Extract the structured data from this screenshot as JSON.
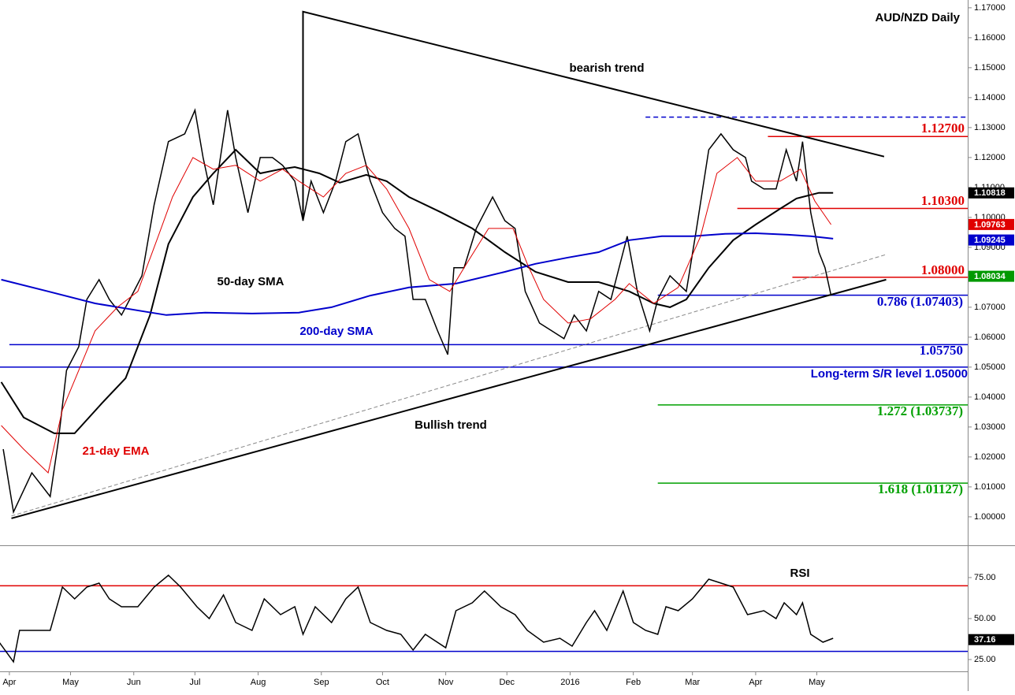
{
  "chart_data": [
    {
      "type": "line",
      "title": "AUD/NZD Daily",
      "xlim": [
        -4.6,
        470
      ],
      "ylim": [
        0.9905,
        1.1726
      ],
      "yticks": [
        {
          "value": 1.0,
          "label": "1.00000"
        },
        {
          "value": 1.01,
          "label": "1.01000"
        },
        {
          "value": 1.02,
          "label": "1.02000"
        },
        {
          "value": 1.03,
          "label": "1.03000"
        },
        {
          "value": 1.04,
          "label": "1.04000"
        },
        {
          "value": 1.05,
          "label": "1.05000"
        },
        {
          "value": 1.06,
          "label": "1.06000"
        },
        {
          "value": 1.07,
          "label": "1.07000"
        },
        {
          "value": 1.08,
          "label": "1.08000"
        },
        {
          "value": 1.09,
          "label": "1.09000"
        },
        {
          "value": 1.1,
          "label": "1.10000"
        },
        {
          "value": 1.11,
          "label": "1.11000"
        },
        {
          "value": 1.12,
          "label": "1.12000"
        },
        {
          "value": 1.13,
          "label": "1.13000"
        },
        {
          "value": 1.14,
          "label": "1.14000"
        },
        {
          "value": 1.15,
          "label": "1.15000"
        },
        {
          "value": 1.16,
          "label": "1.16000"
        },
        {
          "value": 1.17,
          "label": "1.17000"
        }
      ],
      "series": [
        {
          "color": "#000000",
          "x": [
            -3,
            2,
            11,
            20,
            24,
            28,
            34,
            38,
            44,
            49,
            55,
            59,
            65,
            71,
            78,
            86,
            91,
            95,
            100,
            107,
            111,
            117,
            123,
            129,
            134,
            140,
            144,
            148,
            154,
            160,
            165,
            171,
            177,
            183,
            189,
            194,
            198,
            204,
            210,
            215,
            218,
            223,
            229,
            237,
            243,
            248,
            253,
            260,
            266,
            272,
            277,
            283,
            289,
            295,
            303,
            308,
            314,
            318,
            324,
            332,
            337,
            343,
            349,
            355,
            361,
            364,
            370,
            376,
            381,
            386,
            389,
            393,
            397,
            400,
            403
          ],
          "values": [
            1.0226,
            1.0016,
            1.0147,
            1.0068,
            1.0253,
            1.0489,
            1.0568,
            1.0726,
            1.0792,
            1.0726,
            1.0674,
            1.0726,
            1.0805,
            1.1042,
            1.1253,
            1.1279,
            1.1358,
            1.12,
            1.1042,
            1.1358,
            1.12,
            1.1016,
            1.12,
            1.12,
            1.1174,
            1.1121,
            1.0989,
            1.1121,
            1.1016,
            1.1121,
            1.1253,
            1.1279,
            1.1121,
            1.1016,
            1.0963,
            1.0937,
            1.0726,
            1.0726,
            1.0621,
            1.0542,
            1.0832,
            1.0832,
            1.0963,
            1.1068,
            1.0989,
            1.0963,
            1.0753,
            1.0647,
            1.0621,
            1.0595,
            1.0674,
            1.0621,
            1.0753,
            1.0726,
            1.0937,
            1.0753,
            1.0621,
            1.0726,
            1.0805,
            1.0753,
            1.0963,
            1.1226,
            1.1279,
            1.1226,
            1.12,
            1.1121,
            1.1095,
            1.1095,
            1.1226,
            1.1121,
            1.1253,
            1.1016,
            1.0884,
            1.0832,
            1.0739
          ]
        },
        {
          "name": "50-day SMA",
          "color": "#000000",
          "x": [
            -4,
            7,
            22,
            32,
            46,
            57,
            69,
            78,
            90,
            100,
            111,
            123,
            133,
            140,
            152,
            162,
            175,
            185,
            196,
            212,
            227,
            243,
            258,
            274,
            289,
            304,
            316,
            324,
            332,
            343,
            355,
            366,
            378,
            386,
            397,
            404
          ],
          "values": [
            1.045,
            1.0332,
            1.0279,
            1.0279,
            1.0384,
            1.0463,
            1.0674,
            1.0911,
            1.1068,
            1.1147,
            1.1226,
            1.1147,
            1.1161,
            1.1168,
            1.1147,
            1.1116,
            1.1142,
            1.1121,
            1.1068,
            1.1016,
            1.0963,
            1.0884,
            1.0818,
            1.0784,
            1.0784,
            1.0753,
            1.0713,
            1.07,
            1.0726,
            1.0832,
            1.0924,
            1.0976,
            1.1029,
            1.1063,
            1.1082,
            1.1082
          ]
        },
        {
          "name": "200-day SMA",
          "color": "#0000cc",
          "x": [
            -4,
            19,
            42,
            65,
            77,
            96,
            119,
            142,
            158,
            177,
            196,
            219,
            243,
            258,
            274,
            289,
            304,
            320,
            335,
            351,
            366,
            382,
            393,
            404
          ],
          "values": [
            1.0792,
            1.0753,
            1.0713,
            1.0687,
            1.0674,
            1.0682,
            1.0679,
            1.0682,
            1.07,
            1.0739,
            1.0766,
            1.0779,
            1.0818,
            1.0845,
            1.0866,
            1.0884,
            1.0924,
            1.0937,
            1.0937,
            1.0945,
            1.0947,
            1.0942,
            1.0937,
            1.0929
          ]
        },
        {
          "name": "21-day EMA",
          "color": "#e00000",
          "x": [
            -4,
            7,
            19,
            26,
            34,
            42,
            53,
            63,
            73,
            80,
            90,
            100,
            111,
            123,
            134,
            142,
            154,
            165,
            175,
            185,
            196,
            206,
            216,
            223,
            235,
            247,
            254,
            262,
            274,
            285,
            297,
            304,
            316,
            328,
            339,
            347,
            357,
            366,
            378,
            388,
            395,
            403
          ],
          "values": [
            1.0305,
            1.0226,
            1.0147,
            1.0358,
            1.0489,
            1.0621,
            1.07,
            1.0753,
            1.0937,
            1.1068,
            1.12,
            1.1161,
            1.1174,
            1.1121,
            1.1161,
            1.1121,
            1.1068,
            1.1147,
            1.1174,
            1.1095,
            1.0963,
            1.0792,
            1.0753,
            1.0832,
            1.0963,
            1.0963,
            1.0845,
            1.0726,
            1.0647,
            1.0661,
            1.0726,
            1.0779,
            1.0713,
            1.0766,
            1.0937,
            1.1147,
            1.12,
            1.1121,
            1.1121,
            1.1161,
            1.1055,
            1.0976
          ]
        }
      ],
      "levels": [
        {
          "value": 1.1335,
          "color": "#0000cc",
          "start": 312,
          "dashed": true
        },
        {
          "value": 1.127,
          "color": "#e00000",
          "start": 372,
          "label": "1.12700"
        },
        {
          "value": 1.103,
          "color": "#e00000",
          "start": 357,
          "label": "1.10300"
        },
        {
          "value": 1.08,
          "color": "#e00000",
          "start": 384,
          "label": "1.08000"
        },
        {
          "value": 1.07403,
          "color": "#0000cc",
          "start": 318,
          "label": "0.786 (1.07403)"
        },
        {
          "value": 1.0575,
          "color": "#0000cc",
          "start": 0,
          "label": "1.05750"
        },
        {
          "value": 1.05,
          "color": "#0000cc",
          "start": -4.6,
          "label": "Long-term S/R level 1.05000"
        },
        {
          "value": 1.03737,
          "color": "#00a000",
          "start": 318,
          "label": "1.272 (1.03737)"
        },
        {
          "value": 1.01127,
          "color": "#00a000",
          "start": 318,
          "label": "1.618 (1.01127)"
        }
      ],
      "trendlines": [
        {
          "name": "bearish trend",
          "color": "#000000",
          "x": [
            144,
            144,
            429
          ],
          "values": [
            1.0989,
            1.1687,
            1.1203
          ]
        },
        {
          "name": "Bullish trend",
          "color": "#000000",
          "x": [
            1,
            430
          ],
          "values": [
            0.9995,
            1.0792
          ]
        },
        {
          "color": "#888888",
          "dashed": true,
          "x": [
            1,
            430
          ],
          "values": [
            1.0003,
            1.0876
          ]
        }
      ],
      "tags": [
        {
          "value": 1.10818,
          "label": "1.10818",
          "color": "#000000"
        },
        {
          "value": 1.09763,
          "label": "1.09763",
          "color": "#e00000"
        },
        {
          "value": 1.09245,
          "label": "1.09245",
          "color": "#0000cc"
        },
        {
          "value": 1.08034,
          "label": "1.08034",
          "color": "#009900"
        }
      ]
    },
    {
      "type": "line",
      "title": "RSI",
      "xlim": [
        -4.6,
        470
      ],
      "ylim": [
        17.8,
        94.2
      ],
      "yticks": [
        {
          "value": 25,
          "label": "25.00"
        },
        {
          "value": 50,
          "label": "50.00"
        },
        {
          "value": 75,
          "label": "75.00"
        }
      ],
      "xticks": [
        {
          "value": 0,
          "label": "Apr"
        },
        {
          "value": 30,
          "label": "May"
        },
        {
          "value": 61,
          "label": "Jun"
        },
        {
          "value": 91,
          "label": "Jul"
        },
        {
          "value": 122,
          "label": "Aug"
        },
        {
          "value": 153,
          "label": "Sep"
        },
        {
          "value": 183,
          "label": "Oct"
        },
        {
          "value": 214,
          "label": "Nov"
        },
        {
          "value": 244,
          "label": "Dec"
        },
        {
          "value": 275,
          "label": "2016"
        },
        {
          "value": 306,
          "label": "Feb"
        },
        {
          "value": 335,
          "label": "Mar"
        },
        {
          "value": 366,
          "label": "Apr"
        },
        {
          "value": 396,
          "label": "May"
        }
      ],
      "series": [
        {
          "color": "#000000",
          "x": [
            -5,
            2,
            5,
            13,
            20,
            26,
            32,
            38,
            44,
            49,
            55,
            63,
            71,
            78,
            84,
            92,
            98,
            105,
            111,
            119,
            125,
            133,
            140,
            144,
            150,
            158,
            165,
            171,
            177,
            185,
            192,
            198,
            204,
            214,
            219,
            227,
            233,
            241,
            248,
            254,
            262,
            270,
            276,
            283,
            287,
            293,
            301,
            306,
            312,
            318,
            322,
            328,
            335,
            343,
            349,
            355,
            362,
            370,
            376,
            380,
            386,
            389,
            393,
            399,
            404
          ],
          "values": [
            35.6,
            23.6,
            42.8,
            42.8,
            42.8,
            69.2,
            62.0,
            69.2,
            71.6,
            62.0,
            57.2,
            57.2,
            69.2,
            76.4,
            69.2,
            57.2,
            50.0,
            64.4,
            47.6,
            42.8,
            62.0,
            52.4,
            57.2,
            40.4,
            57.2,
            47.6,
            62.0,
            69.2,
            47.6,
            42.8,
            40.4,
            30.8,
            40.4,
            32.2,
            54.8,
            59.6,
            66.8,
            57.2,
            52.4,
            42.8,
            35.6,
            38.0,
            33.2,
            47.6,
            54.8,
            42.8,
            66.8,
            47.6,
            42.8,
            40.4,
            57.2,
            54.8,
            62.0,
            74.0,
            71.6,
            69.2,
            52.4,
            54.8,
            50.0,
            59.6,
            52.4,
            59.6,
            40.4,
            35.6,
            38.0
          ]
        }
      ],
      "levels": [
        {
          "value": 70,
          "color": "#e00000",
          "start": -4.6
        },
        {
          "value": 30,
          "color": "#0000cc",
          "start": -4.6
        }
      ],
      "tags": [
        {
          "value": 37.16,
          "label": "37.16",
          "color": "#000000"
        }
      ]
    }
  ]
}
